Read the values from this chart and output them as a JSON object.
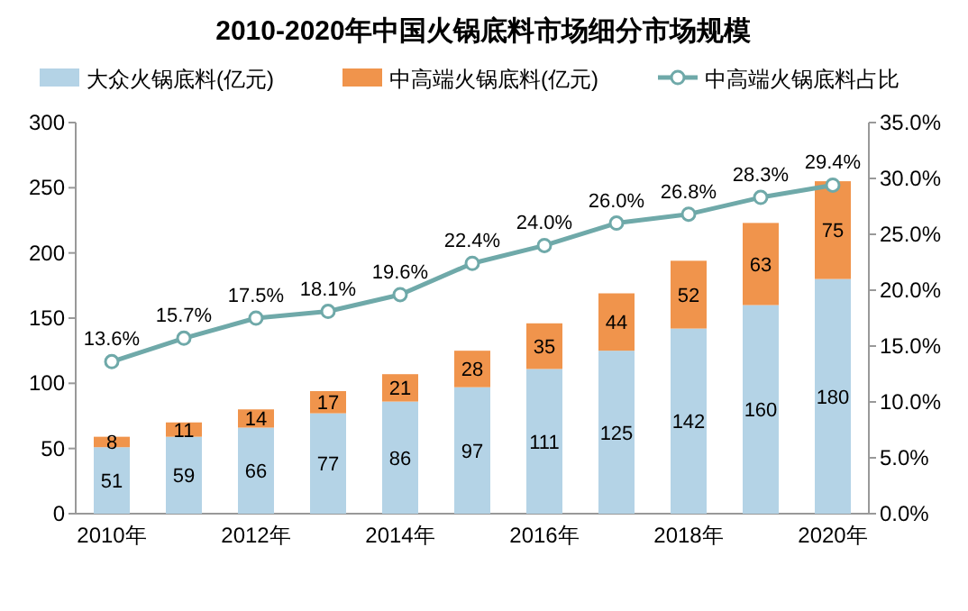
{
  "chart_data": {
    "type": "bar",
    "title": "2010-2020年中国火锅底料市场细分市场规模",
    "categories": [
      "2010年",
      null,
      "2012年",
      null,
      "2014年",
      null,
      "2016年",
      null,
      "2018年",
      null,
      "2020年"
    ],
    "stacked": true,
    "data_labels": true,
    "legend": "top",
    "ylim": [
      0,
      300
    ],
    "yticks": [
      0,
      50,
      100,
      150,
      200,
      250,
      300
    ],
    "y2lim": [
      0,
      35
    ],
    "y2ticks": [
      {
        "value": 0,
        "label": "0.0%"
      },
      {
        "value": 5,
        "label": "5.0%"
      },
      {
        "value": 10,
        "label": "10.0%"
      },
      {
        "value": 15,
        "label": "15.0%"
      },
      {
        "value": 20,
        "label": "20.0%"
      },
      {
        "value": 25,
        "label": "25.0%"
      },
      {
        "value": 30,
        "label": "30.0%"
      },
      {
        "value": 35,
        "label": "35.0%"
      }
    ],
    "series": [
      {
        "name": "大众火锅底料(亿元)",
        "color": "#b4d3e6",
        "values": [
          51,
          59,
          66,
          77,
          86,
          97,
          111,
          125,
          142,
          160,
          180
        ]
      },
      {
        "name": "中高端火锅底料(亿元)",
        "color": "#f0944c",
        "values": [
          8,
          11,
          14,
          17,
          21,
          28,
          35,
          44,
          52,
          63,
          75
        ]
      },
      {
        "name": "中高端火锅底料占比",
        "type": "line",
        "axis": "y2",
        "marker": "circle",
        "color": "#6fa9a9",
        "values": [
          13.6,
          15.7,
          17.5,
          18.1,
          19.6,
          22.4,
          24.0,
          26.0,
          26.8,
          28.3,
          29.4
        ],
        "value_labels": [
          "13.6%",
          "15.7%",
          "17.5%",
          "18.1%",
          "19.6%",
          "22.4%",
          "24.0%",
          "26.0%",
          "26.8%",
          "28.3%",
          "29.4%"
        ]
      }
    ]
  }
}
